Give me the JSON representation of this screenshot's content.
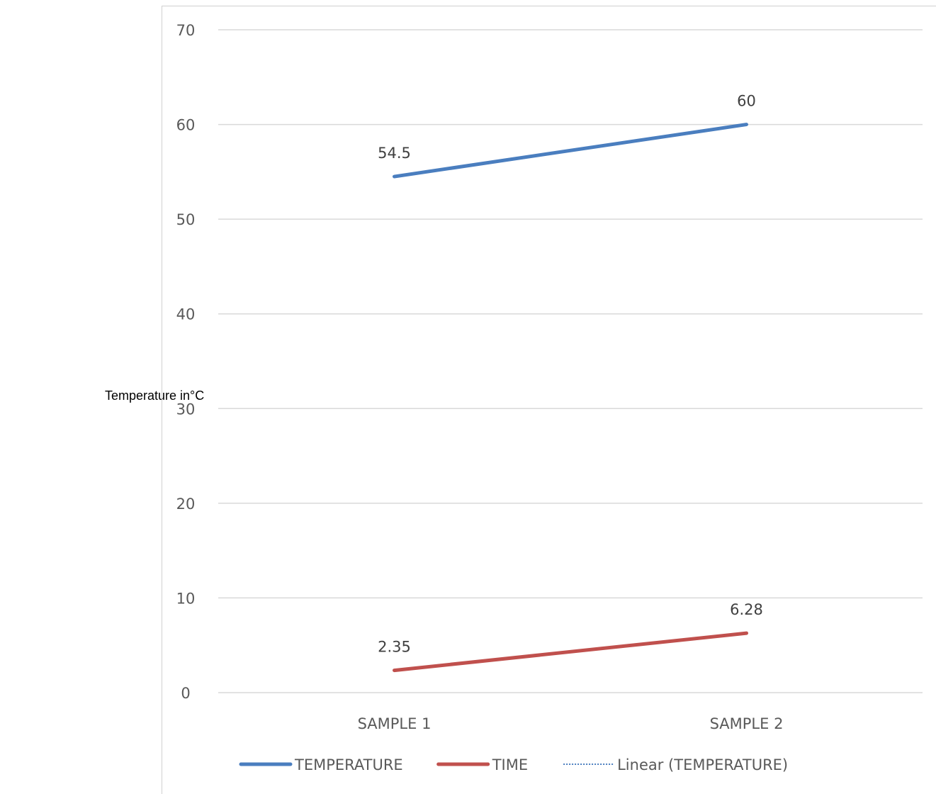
{
  "chart_data": {
    "type": "line",
    "title": "",
    "ylabel": "Temperature in°C",
    "xlabel": "",
    "categories": [
      "SAMPLE 1",
      "SAMPLE 2"
    ],
    "ylim": [
      0,
      70
    ],
    "yticks": [
      0,
      10,
      20,
      30,
      40,
      50,
      60,
      70
    ],
    "grid": true,
    "legend_position": "bottom",
    "series": [
      {
        "name": "TEMPERATURE",
        "values": [
          54.5,
          60
        ],
        "labels": [
          "54.5",
          "60"
        ],
        "color": "#4a7ebf",
        "style": "solid"
      },
      {
        "name": "TIME",
        "values": [
          2.35,
          6.28
        ],
        "labels": [
          "2.35",
          "6.28"
        ],
        "color": "#c0504d",
        "style": "solid"
      }
    ],
    "legend": [
      {
        "label": "TEMPERATURE",
        "color": "#4a7ebf",
        "style": "solid"
      },
      {
        "label": "TIME",
        "color": "#c0504d",
        "style": "solid"
      },
      {
        "label": "Linear (TEMPERATURE)",
        "color": "#4a7ebf",
        "style": "dotted"
      }
    ]
  }
}
